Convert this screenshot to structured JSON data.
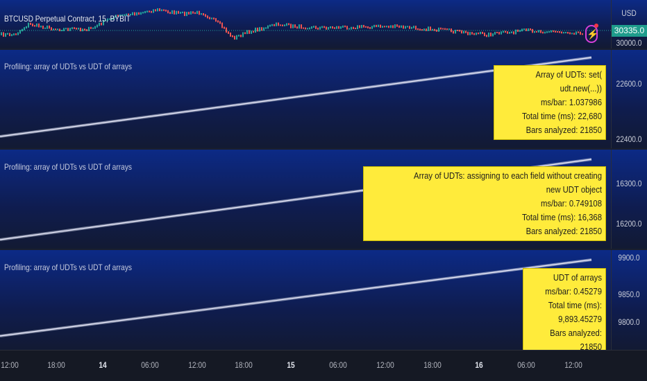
{
  "main": {
    "symbol": "BTCUSD Perpetual Contract, 15, BYBIT",
    "currency": "USD",
    "last_price": "30335.0",
    "price_label": "30000.0",
    "last_price_color": "#1e9c8c",
    "up_color": "#26a69a",
    "down_color": "#ef5350"
  },
  "panes": [
    {
      "title": "Profiling: array of UDTs vs UDT of arrays",
      "box": [
        "Array of UDTs: set( udt.new(...))",
        "ms/bar: 1.037986",
        "Total time (ms): 22,680",
        "Bars analyzed: 21850"
      ],
      "axis": [
        "22600.0",
        "22400.0"
      ]
    },
    {
      "title": "Profiling: array of UDTs vs UDT of arrays",
      "box": [
        "Array of UDTs: assigning to each field without creating new UDT object",
        "ms/bar: 0.749108",
        "Total time (ms): 16,368",
        "Bars analyzed: 21850"
      ],
      "axis": [
        "16300.0",
        "16200.0"
      ]
    },
    {
      "title": "Profiling: array of UDTs vs UDT of arrays",
      "box": [
        "UDT of arrays",
        "ms/bar: 0.45279",
        "Total time (ms): 9,893.45279",
        "Bars analyzed: 21850"
      ],
      "axis": [
        "9900.0",
        "9850.0",
        "9800.0"
      ]
    }
  ],
  "time_axis": [
    "12:00",
    "18:00",
    "14",
    "06:00",
    "12:00",
    "18:00",
    "15",
    "06:00",
    "12:00",
    "18:00",
    "16",
    "06:00",
    "12:00"
  ],
  "box_color": "#ffeb3b"
}
